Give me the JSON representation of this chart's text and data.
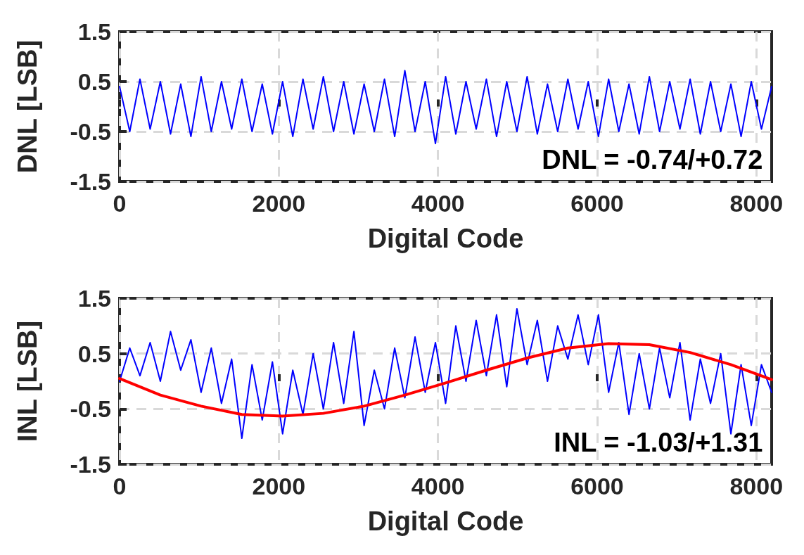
{
  "chart_data": [
    {
      "type": "line",
      "xlabel": "Digital Code",
      "ylabel": "DNL [LSB]",
      "annotations": [
        "DNL = -0.74/+0.72"
      ],
      "xlim": [
        0,
        8192
      ],
      "xticks": [
        0,
        2000,
        4000,
        6000,
        8000
      ],
      "ylim": [
        -1.5,
        1.5
      ],
      "yticks": [
        -1.5,
        -0.5,
        0.5,
        1.5
      ],
      "grid": true,
      "line_style": "solid",
      "marker": "none",
      "x": [
        0,
        128,
        256,
        384,
        512,
        640,
        768,
        896,
        1024,
        1152,
        1280,
        1408,
        1536,
        1664,
        1792,
        1920,
        2048,
        2176,
        2304,
        2432,
        2560,
        2688,
        2816,
        2944,
        3072,
        3200,
        3328,
        3456,
        3584,
        3712,
        3840,
        3968,
        4096,
        4224,
        4352,
        4480,
        4608,
        4736,
        4864,
        4992,
        5120,
        5248,
        5376,
        5504,
        5632,
        5760,
        5888,
        6016,
        6144,
        6272,
        6400,
        6528,
        6656,
        6784,
        6912,
        7040,
        7168,
        7296,
        7424,
        7552,
        7680,
        7808,
        7936,
        8064,
        8192
      ],
      "series": [
        {
          "color": "#0000ff",
          "values": [
            0.4,
            -0.5,
            0.55,
            -0.45,
            0.5,
            -0.55,
            0.45,
            -0.6,
            0.6,
            -0.5,
            0.5,
            -0.45,
            0.55,
            -0.5,
            0.45,
            -0.55,
            0.5,
            -0.6,
            0.55,
            -0.45,
            0.6,
            -0.5,
            0.5,
            -0.55,
            0.45,
            -0.5,
            0.55,
            -0.6,
            0.72,
            -0.5,
            0.5,
            -0.74,
            0.6,
            -0.55,
            0.5,
            -0.45,
            0.55,
            -0.6,
            0.5,
            -0.5,
            0.6,
            -0.55,
            0.45,
            -0.5,
            0.55,
            -0.45,
            0.5,
            -0.6,
            0.55,
            -0.5,
            0.45,
            -0.55,
            0.6,
            -0.5,
            0.5,
            -0.45,
            0.55,
            -0.55,
            0.5,
            -0.5,
            0.45,
            -0.6,
            0.5,
            -0.45,
            0.4
          ]
        }
      ]
    },
    {
      "type": "line",
      "xlabel": "Digital Code",
      "ylabel": "INL [LSB]",
      "annotations": [
        "INL = -1.03/+1.31"
      ],
      "xlim": [
        0,
        8192
      ],
      "xticks": [
        0,
        2000,
        4000,
        6000,
        8000
      ],
      "ylim": [
        -1.5,
        1.5
      ],
      "yticks": [
        -1.5,
        -0.5,
        0.5,
        1.5
      ],
      "grid": true,
      "line_style": "solid",
      "marker": "none",
      "x": [
        0,
        128,
        256,
        384,
        512,
        640,
        768,
        896,
        1024,
        1152,
        1280,
        1408,
        1536,
        1664,
        1792,
        1920,
        2048,
        2176,
        2304,
        2432,
        2560,
        2688,
        2816,
        2944,
        3072,
        3200,
        3328,
        3456,
        3584,
        3712,
        3840,
        3968,
        4096,
        4224,
        4352,
        4480,
        4608,
        4736,
        4864,
        4992,
        5120,
        5248,
        5376,
        5504,
        5632,
        5760,
        5888,
        6016,
        6144,
        6272,
        6400,
        6528,
        6656,
        6784,
        6912,
        7040,
        7168,
        7296,
        7424,
        7552,
        7680,
        7808,
        7936,
        8064,
        8192
      ],
      "series": [
        {
          "color": "#0000ff",
          "values": [
            0.0,
            0.6,
            0.1,
            0.7,
            0.0,
            0.9,
            0.2,
            0.75,
            -0.2,
            0.6,
            -0.4,
            0.4,
            -1.03,
            0.3,
            -0.7,
            0.35,
            -0.95,
            0.2,
            -0.6,
            0.5,
            -0.5,
            0.7,
            -0.4,
            0.9,
            -0.8,
            0.2,
            -0.5,
            0.6,
            -0.3,
            0.8,
            -0.2,
            0.7,
            -0.4,
            1.0,
            0.0,
            1.1,
            0.1,
            1.2,
            -0.1,
            1.31,
            0.3,
            1.1,
            0.0,
            1.0,
            0.4,
            1.2,
            0.3,
            1.2,
            -0.2,
            0.7,
            -0.6,
            0.5,
            -0.5,
            0.6,
            -0.3,
            0.7,
            -0.7,
            0.4,
            -0.4,
            0.5,
            -0.95,
            0.3,
            -0.8,
            0.3,
            -0.2
          ]
        },
        {
          "color": "#ff0000",
          "x": [
            0,
            512,
            1024,
            1536,
            2048,
            2560,
            3072,
            3584,
            4096,
            4608,
            5120,
            5632,
            6144,
            6656,
            7168,
            7680,
            8192
          ],
          "values": [
            0.05,
            -0.25,
            -0.45,
            -0.6,
            -0.63,
            -0.58,
            -0.45,
            -0.25,
            -0.03,
            0.2,
            0.42,
            0.6,
            0.68,
            0.66,
            0.52,
            0.3,
            0.03
          ]
        }
      ]
    }
  ]
}
